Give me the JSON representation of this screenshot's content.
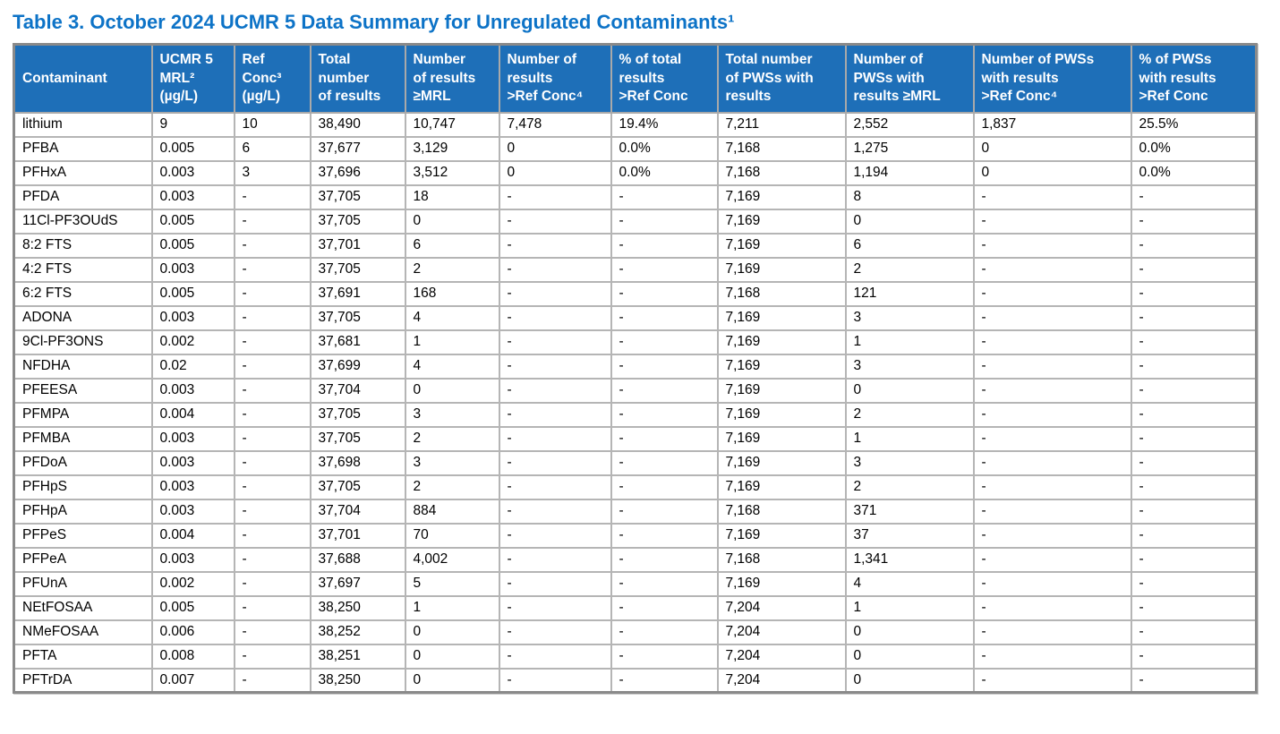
{
  "title": "Table 3. October 2024 UCMR 5 Data Summary for Unregulated Contaminants¹",
  "colors": {
    "title_text": "#0d73c7",
    "header_background": "#1e6fb8",
    "header_text": "#ffffff",
    "outer_border": "#8a8a8a",
    "inner_border": "#b5b5b5",
    "body_text": "#000000"
  },
  "table": {
    "columns": [
      {
        "name": "contaminant",
        "lines": [
          "Contaminant"
        ]
      },
      {
        "name": "ucmr5-mrl",
        "lines": [
          "UCMR 5",
          "MRL²",
          "(µg/L)"
        ]
      },
      {
        "name": "ref-conc",
        "lines": [
          "Ref",
          "Conc³",
          "(µg/L)"
        ]
      },
      {
        "name": "total-number-of-results",
        "lines": [
          "Total",
          "number",
          "of results"
        ]
      },
      {
        "name": "number-of-results-gte-mrl",
        "lines": [
          "Number",
          "of results",
          "≥MRL"
        ]
      },
      {
        "name": "number-of-results-gt-ref-conc",
        "lines": [
          "Number of",
          "results",
          ">Ref Conc⁴"
        ]
      },
      {
        "name": "pct-of-total-results-gt-ref-conc",
        "lines": [
          "% of total",
          "results",
          ">Ref Conc"
        ]
      },
      {
        "name": "total-number-of-pwss-with-results",
        "lines": [
          "Total number",
          "of PWSs with",
          "results"
        ]
      },
      {
        "name": "number-of-pwss-with-results-gte-mrl",
        "lines": [
          "Number of",
          "PWSs with",
          "results ≥MRL"
        ]
      },
      {
        "name": "number-of-pwss-with-results-gt-ref-conc",
        "lines": [
          "Number of PWSs",
          "with results",
          ">Ref Conc⁴"
        ]
      },
      {
        "name": "pct-of-pwss-with-results-gt-ref-conc",
        "lines": [
          "% of PWSs",
          "with results",
          ">Ref Conc"
        ]
      }
    ],
    "rows": [
      [
        "lithium",
        "9",
        "10",
        "38,490",
        "10,747",
        "7,478",
        "19.4%",
        "7,211",
        "2,552",
        "1,837",
        "25.5%"
      ],
      [
        "PFBA",
        "0.005",
        "6",
        "37,677",
        "3,129",
        "0",
        "0.0%",
        "7,168",
        "1,275",
        "0",
        "0.0%"
      ],
      [
        "PFHxA",
        "0.003",
        "3",
        "37,696",
        "3,512",
        "0",
        "0.0%",
        "7,168",
        "1,194",
        "0",
        "0.0%"
      ],
      [
        "PFDA",
        "0.003",
        "-",
        "37,705",
        "18",
        "-",
        "-",
        "7,169",
        "8",
        "-",
        "-"
      ],
      [
        "11Cl-PF3OUdS",
        "0.005",
        "-",
        "37,705",
        "0",
        "-",
        "-",
        "7,169",
        "0",
        "-",
        "-"
      ],
      [
        "8:2 FTS",
        "0.005",
        "-",
        "37,701",
        "6",
        "-",
        "-",
        "7,169",
        "6",
        "-",
        "-"
      ],
      [
        "4:2 FTS",
        "0.003",
        "-",
        "37,705",
        "2",
        "-",
        "-",
        "7,169",
        "2",
        "-",
        "-"
      ],
      [
        "6:2 FTS",
        "0.005",
        "-",
        "37,691",
        "168",
        "-",
        "-",
        "7,168",
        "121",
        "-",
        "-"
      ],
      [
        "ADONA",
        "0.003",
        "-",
        "37,705",
        "4",
        "-",
        "-",
        "7,169",
        "3",
        "-",
        "-"
      ],
      [
        "9Cl-PF3ONS",
        "0.002",
        "-",
        "37,681",
        "1",
        "-",
        "-",
        "7,169",
        "1",
        "-",
        "-"
      ],
      [
        "NFDHA",
        "0.02",
        "-",
        "37,699",
        "4",
        "-",
        "-",
        "7,169",
        "3",
        "-",
        "-"
      ],
      [
        "PFEESA",
        "0.003",
        "-",
        "37,704",
        "0",
        "-",
        "-",
        "7,169",
        "0",
        "-",
        "-"
      ],
      [
        "PFMPA",
        "0.004",
        "-",
        "37,705",
        "3",
        "-",
        "-",
        "7,169",
        "2",
        "-",
        "-"
      ],
      [
        "PFMBA",
        "0.003",
        "-",
        "37,705",
        "2",
        "-",
        "-",
        "7,169",
        "1",
        "-",
        "-"
      ],
      [
        "PFDoA",
        "0.003",
        "-",
        "37,698",
        "3",
        "-",
        "-",
        "7,169",
        "3",
        "-",
        "-"
      ],
      [
        "PFHpS",
        "0.003",
        "-",
        "37,705",
        "2",
        "-",
        "-",
        "7,169",
        "2",
        "-",
        "-"
      ],
      [
        "PFHpA",
        "0.003",
        "-",
        "37,704",
        "884",
        "-",
        "-",
        "7,168",
        "371",
        "-",
        "-"
      ],
      [
        "PFPeS",
        "0.004",
        "-",
        "37,701",
        "70",
        "-",
        "-",
        "7,169",
        "37",
        "-",
        "-"
      ],
      [
        "PFPeA",
        "0.003",
        "-",
        "37,688",
        "4,002",
        "-",
        "-",
        "7,168",
        "1,341",
        "-",
        "-"
      ],
      [
        "PFUnA",
        "0.002",
        "-",
        "37,697",
        "5",
        "-",
        "-",
        "7,169",
        "4",
        "-",
        "-"
      ],
      [
        "NEtFOSAA",
        "0.005",
        "-",
        "38,250",
        "1",
        "-",
        "-",
        "7,204",
        "1",
        "-",
        "-"
      ],
      [
        "NMeFOSAA",
        "0.006",
        "-",
        "38,252",
        "0",
        "-",
        "-",
        "7,204",
        "0",
        "-",
        "-"
      ],
      [
        "PFTA",
        "0.008",
        "-",
        "38,251",
        "0",
        "-",
        "-",
        "7,204",
        "0",
        "-",
        "-"
      ],
      [
        "PFTrDA",
        "0.007",
        "-",
        "38,250",
        "0",
        "-",
        "-",
        "7,204",
        "0",
        "-",
        "-"
      ]
    ]
  }
}
